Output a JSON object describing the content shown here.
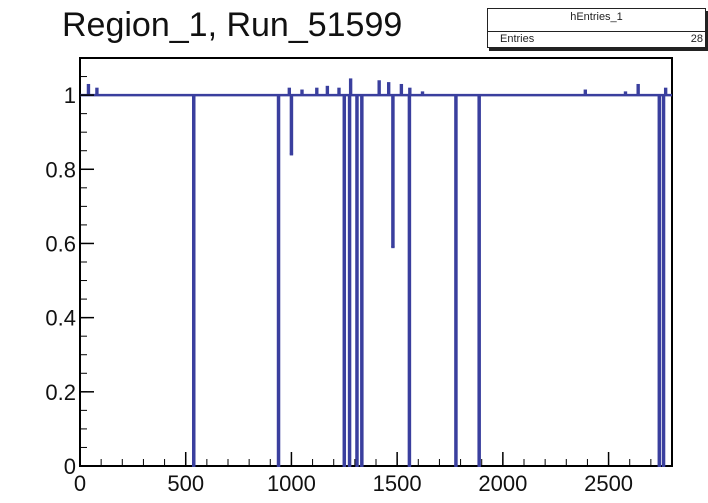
{
  "title": "Region_1, Run_51599",
  "stats_box": {
    "name": "hEntries_1",
    "entries_label": "Entries",
    "entries_value": "28"
  },
  "colors": {
    "histogram": "#3a3f9e",
    "axis": "#000000",
    "frame": "#000000"
  },
  "chart_data": {
    "type": "bar",
    "title": "Region_1, Run_51599",
    "xlabel": "",
    "ylabel": "",
    "xlim": [
      0,
      2800
    ],
    "ylim": [
      0,
      1.1
    ],
    "x_ticks": [
      0,
      500,
      1000,
      1500,
      2000,
      2500
    ],
    "x_tick_labels": [
      "0",
      "500",
      "1000",
      "1500",
      "2000",
      "2500"
    ],
    "y_ticks": [
      0,
      0.2,
      0.4,
      0.6,
      0.8,
      1
    ],
    "y_tick_labels": [
      "0",
      "0.2",
      "0.4",
      "0.6",
      "0.8",
      "1"
    ],
    "baseline": 1.0,
    "bar_width": 16,
    "dips": [
      {
        "x": 538,
        "value": 0
      },
      {
        "x": 939,
        "value": 0
      },
      {
        "x": 1000,
        "value": 0.84
      },
      {
        "x": 1250,
        "value": 0
      },
      {
        "x": 1275,
        "value": 0
      },
      {
        "x": 1310,
        "value": 0
      },
      {
        "x": 1333,
        "value": 0
      },
      {
        "x": 1480,
        "value": 0.59
      },
      {
        "x": 1558,
        "value": 0
      },
      {
        "x": 1778,
        "value": 0
      },
      {
        "x": 1888,
        "value": 0
      },
      {
        "x": 2740,
        "value": 0
      },
      {
        "x": 2760,
        "value": 0
      }
    ],
    "spikes": [
      {
        "x": 40,
        "value": 1.03
      },
      {
        "x": 80,
        "value": 1.02
      },
      {
        "x": 990,
        "value": 1.02
      },
      {
        "x": 1050,
        "value": 1.015
      },
      {
        "x": 1120,
        "value": 1.02
      },
      {
        "x": 1170,
        "value": 1.025
      },
      {
        "x": 1225,
        "value": 1.02
      },
      {
        "x": 1280,
        "value": 1.045
      },
      {
        "x": 1415,
        "value": 1.04
      },
      {
        "x": 1460,
        "value": 1.035
      },
      {
        "x": 1520,
        "value": 1.03
      },
      {
        "x": 1560,
        "value": 1.02
      },
      {
        "x": 1620,
        "value": 1.01
      },
      {
        "x": 2390,
        "value": 1.015
      },
      {
        "x": 2580,
        "value": 1.01
      },
      {
        "x": 2640,
        "value": 1.03
      },
      {
        "x": 2770,
        "value": 1.02
      }
    ],
    "grid": false,
    "legend": "none"
  }
}
